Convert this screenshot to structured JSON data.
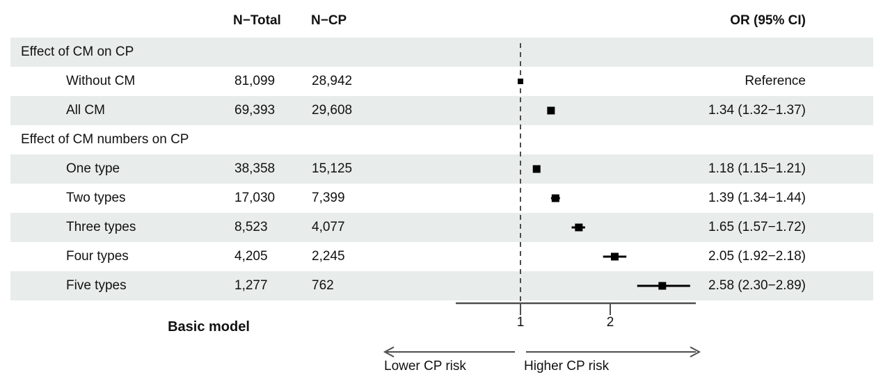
{
  "header": {
    "n_total": "N−Total",
    "n_cp": "N−CP",
    "or_ci": "OR (95% CI)"
  },
  "rows": [
    {
      "label": "Effect of CM on CP",
      "indent": false,
      "n_total": "",
      "n_cp": "",
      "or_text": ""
    },
    {
      "label": "Without CM",
      "indent": true,
      "n_total": "81,099",
      "n_cp": "28,942",
      "or_text": "Reference"
    },
    {
      "label": "All CM",
      "indent": true,
      "n_total": "69,393",
      "n_cp": "29,608",
      "or_text": "1.34 (1.32−1.37)"
    },
    {
      "label": "Effect of CM numbers on CP",
      "indent": false,
      "n_total": "",
      "n_cp": "",
      "or_text": ""
    },
    {
      "label": "One type",
      "indent": true,
      "n_total": "38,358",
      "n_cp": "15,125",
      "or_text": "1.18 (1.15−1.21)"
    },
    {
      "label": "Two types",
      "indent": true,
      "n_total": "17,030",
      "n_cp": "7,399",
      "or_text": "1.39 (1.34−1.44)"
    },
    {
      "label": "Three types",
      "indent": true,
      "n_total": "8,523",
      "n_cp": "4,077",
      "or_text": "1.65 (1.57−1.72)"
    },
    {
      "label": "Four types",
      "indent": true,
      "n_total": "4,205",
      "n_cp": "2,245",
      "or_text": "2.05 (1.92−2.18)"
    },
    {
      "label": "Five types",
      "indent": true,
      "n_total": "1,277",
      "n_cp": "762",
      "or_text": "2.58 (2.30−2.89)"
    }
  ],
  "footer": {
    "model_label": "Basic model",
    "tick_1": "1",
    "tick_2": "2",
    "lower_label": "Lower CP risk",
    "higher_label": "Higher CP risk"
  },
  "chart_data": {
    "type": "forest",
    "title": "Forest plot of association between CM and CP (Basic model)",
    "x_axis": {
      "scale": "linear",
      "ticks": [
        1,
        2
      ],
      "reference_line": 1,
      "range_shown": [
        0.3,
        2.95
      ]
    },
    "legend_position": "none",
    "grid": false,
    "series": [
      {
        "label": "Without CM",
        "table_row": 1,
        "or": 1.0,
        "ci_low": 1.0,
        "ci_high": 1.0,
        "reference": true,
        "n_total": 81099,
        "n_cp": 28942
      },
      {
        "label": "All CM",
        "table_row": 2,
        "or": 1.34,
        "ci_low": 1.32,
        "ci_high": 1.37,
        "reference": false,
        "n_total": 69393,
        "n_cp": 29608
      },
      {
        "label": "One type",
        "table_row": 4,
        "or": 1.18,
        "ci_low": 1.15,
        "ci_high": 1.21,
        "reference": false,
        "n_total": 38358,
        "n_cp": 15125
      },
      {
        "label": "Two types",
        "table_row": 5,
        "or": 1.39,
        "ci_low": 1.34,
        "ci_high": 1.44,
        "reference": false,
        "n_total": 17030,
        "n_cp": 7399
      },
      {
        "label": "Three types",
        "table_row": 6,
        "or": 1.65,
        "ci_low": 1.57,
        "ci_high": 1.72,
        "reference": false,
        "n_total": 8523,
        "n_cp": 4077
      },
      {
        "label": "Four types",
        "table_row": 7,
        "or": 2.05,
        "ci_low": 1.92,
        "ci_high": 2.18,
        "reference": false,
        "n_total": 4205,
        "n_cp": 2245
      },
      {
        "label": "Five types",
        "table_row": 8,
        "or": 2.58,
        "ci_low": 2.3,
        "ci_high": 2.89,
        "reference": false,
        "n_total": 1277,
        "n_cp": 762
      }
    ]
  },
  "colors": {
    "row_shade": "#e8eceb",
    "marker": "#000000",
    "axis": "#4d4d4d",
    "text": "#111111"
  }
}
